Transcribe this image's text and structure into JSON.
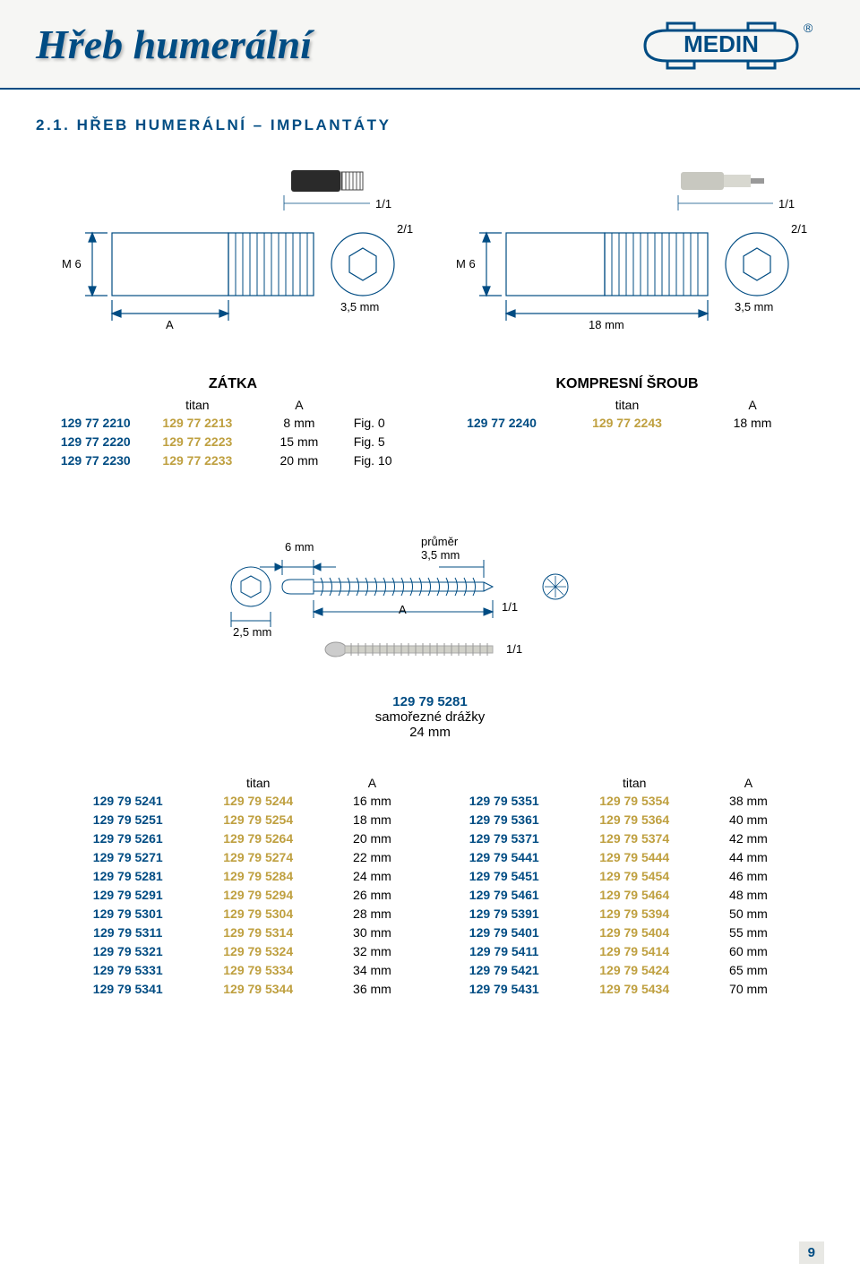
{
  "header": {
    "title": "Hřeb humerální",
    "logo_text": "MEDIN",
    "logo_color": "#004c83",
    "logo_bg": "#ffffff"
  },
  "section": {
    "title": "2.1. HŘEB HUMERÁLNÍ – IMPLANTÁTY"
  },
  "diagram_left": {
    "scale_top": "1/1",
    "scale_side": "2/1",
    "thread_label": "M 6",
    "dim_A": "A",
    "dim_35": "3,5 mm",
    "stroke": "#004c83"
  },
  "diagram_right": {
    "scale_top": "1/1",
    "scale_side": "2/1",
    "thread_label": "M 6",
    "dim_18": "18 mm",
    "dim_35": "3,5 mm",
    "stroke": "#004c83"
  },
  "zatka": {
    "title": "ZÁTKA",
    "head": [
      "",
      "titan",
      "A",
      ""
    ],
    "rows": [
      [
        "129 77 2210",
        "129 77 2213",
        "8 mm",
        "Fig. 0"
      ],
      [
        "129 77 2220",
        "129 77 2223",
        "15 mm",
        "Fig. 5"
      ],
      [
        "129 77 2230",
        "129 77 2233",
        "20 mm",
        "Fig. 10"
      ]
    ]
  },
  "kompresni": {
    "title": "KOMPRESNÍ ŠROUB",
    "head": [
      "",
      "titan",
      "A"
    ],
    "rows": [
      [
        "129 77 2240",
        "129 77 2243",
        "18 mm"
      ]
    ]
  },
  "screw": {
    "dim_6": "6 mm",
    "diam_label": "průměr",
    "diam_val": "3,5 mm",
    "dim_A": "A",
    "dim_25": "2,5 mm",
    "scale1": "1/1",
    "scale2": "1/1",
    "stroke": "#004c83"
  },
  "center": {
    "code": "129 79 5281",
    "note": "samořezné drážky",
    "size": "24 mm"
  },
  "table_left": {
    "head": [
      "",
      "titan",
      "A"
    ],
    "rows": [
      [
        "129 79 5241",
        "129 79 5244",
        "16 mm"
      ],
      [
        "129 79 5251",
        "129 79 5254",
        "18 mm"
      ],
      [
        "129 79 5261",
        "129 79 5264",
        "20 mm"
      ],
      [
        "129 79 5271",
        "129 79 5274",
        "22 mm"
      ],
      [
        "129 79 5281",
        "129 79 5284",
        "24 mm"
      ],
      [
        "129 79 5291",
        "129 79 5294",
        "26 mm"
      ],
      [
        "129 79 5301",
        "129 79 5304",
        "28 mm"
      ],
      [
        "129 79 5311",
        "129 79 5314",
        "30 mm"
      ],
      [
        "129 79 5321",
        "129 79 5324",
        "32 mm"
      ],
      [
        "129 79 5331",
        "129 79 5334",
        "34 mm"
      ],
      [
        "129 79 5341",
        "129 79 5344",
        "36 mm"
      ]
    ]
  },
  "table_right": {
    "head": [
      "",
      "titan",
      "A"
    ],
    "rows": [
      [
        "129 79 5351",
        "129 79 5354",
        "38 mm"
      ],
      [
        "129 79 5361",
        "129 79 5364",
        "40 mm"
      ],
      [
        "129 79 5371",
        "129 79 5374",
        "42 mm"
      ],
      [
        "129 79 5441",
        "129 79 5444",
        "44 mm"
      ],
      [
        "129 79 5451",
        "129 79 5454",
        "46 mm"
      ],
      [
        "129 79 5461",
        "129 79 5464",
        "48 mm"
      ],
      [
        "129 79 5391",
        "129 79 5394",
        "50 mm"
      ],
      [
        "129 79 5401",
        "129 79 5404",
        "55 mm"
      ],
      [
        "129 79 5411",
        "129 79 5414",
        "60 mm"
      ],
      [
        "129 79 5421",
        "129 79 5424",
        "65 mm"
      ],
      [
        "129 79 5431",
        "129 79 5434",
        "70 mm"
      ]
    ]
  },
  "page_number": "9",
  "colors": {
    "blue": "#004c83",
    "gold": "#bfa040",
    "black": "#000000",
    "header_bg": "#f6f6f4"
  }
}
